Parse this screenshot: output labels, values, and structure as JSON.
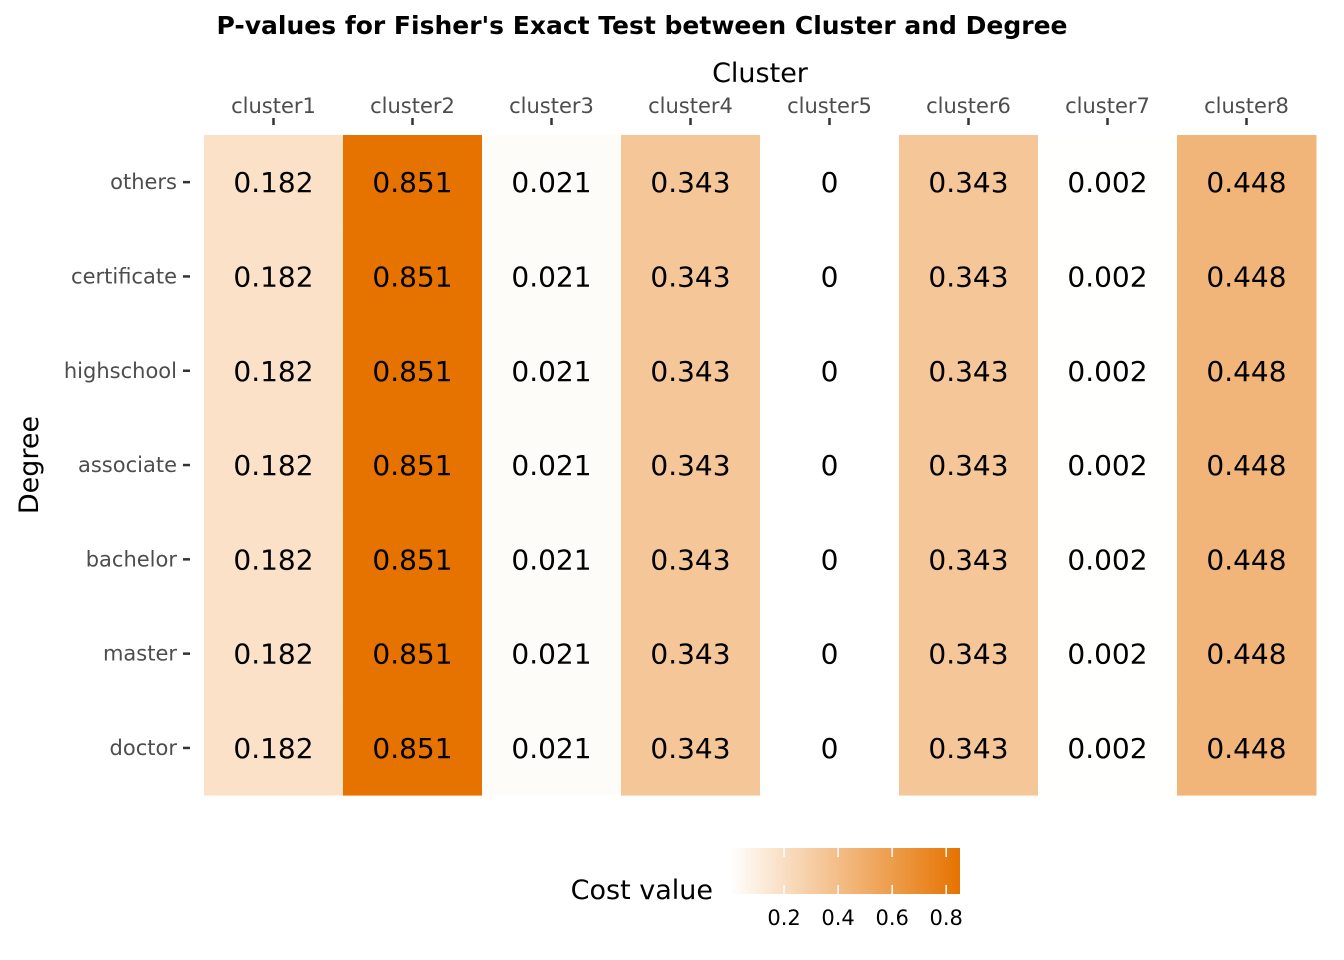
{
  "chart_data": {
    "type": "heatmap",
    "title": "P-values for Fisher's Exact Test between Cluster and Degree",
    "xlabel": "Cluster",
    "ylabel": "Degree",
    "x_axis_position": "top",
    "x": [
      "cluster1",
      "cluster2",
      "cluster3",
      "cluster4",
      "cluster5",
      "cluster6",
      "cluster7",
      "cluster8"
    ],
    "y": [
      "others",
      "certificate",
      "highschool",
      "associate",
      "bachelor",
      "master",
      "doctor"
    ],
    "values": [
      [
        0.182,
        0.851,
        0.021,
        0.343,
        0,
        0.343,
        0.002,
        0.448
      ],
      [
        0.182,
        0.851,
        0.021,
        0.343,
        0,
        0.343,
        0.002,
        0.448
      ],
      [
        0.182,
        0.851,
        0.021,
        0.343,
        0,
        0.343,
        0.002,
        0.448
      ],
      [
        0.182,
        0.851,
        0.021,
        0.343,
        0,
        0.343,
        0.002,
        0.448
      ],
      [
        0.182,
        0.851,
        0.021,
        0.343,
        0,
        0.343,
        0.002,
        0.448
      ],
      [
        0.182,
        0.851,
        0.021,
        0.343,
        0,
        0.343,
        0.002,
        0.448
      ],
      [
        0.182,
        0.851,
        0.021,
        0.343,
        0,
        0.343,
        0.002,
        0.448
      ]
    ],
    "color_scale": {
      "low_color": "#ffffff",
      "high_color": "#e67300",
      "domain": [
        0,
        0.851
      ]
    },
    "legend": {
      "title": "Cost value",
      "position": "bottom",
      "ticks": [
        0.2,
        0.4,
        0.6,
        0.8
      ],
      "tick_labels": [
        "0.2",
        "0.4",
        "0.6",
        "0.8"
      ]
    },
    "grid": false
  }
}
